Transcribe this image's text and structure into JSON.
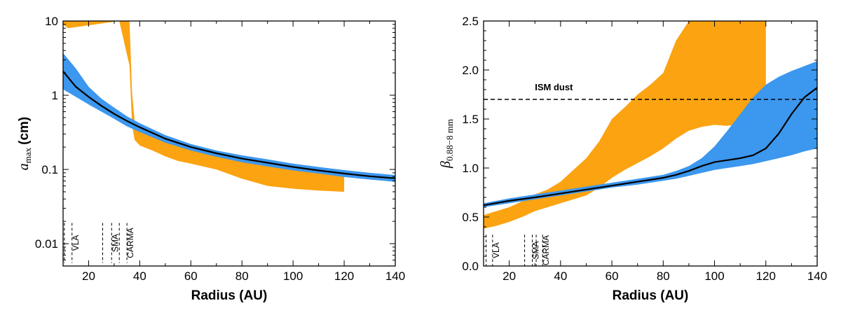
{
  "chart_data": [
    {
      "type": "area",
      "id": "left",
      "ylabel_main": "a",
      "ylabel_sub": "max",
      "ylabel_unit": "(cm)",
      "xlabel": "Radius (AU)",
      "xlim": [
        10,
        140
      ],
      "ylim": [
        0.005,
        10
      ],
      "yscale": "log",
      "xticks": [
        20,
        40,
        60,
        80,
        100,
        120,
        140
      ],
      "yticks": [
        0.01,
        0.1,
        1,
        10
      ],
      "ytick_labels": [
        "0.01",
        "0.1",
        "1",
        "10"
      ],
      "colors": {
        "blue": "#3c97ee",
        "orange": "#fba311",
        "line": "#000000"
      },
      "blue_band": {
        "x": [
          10,
          15,
          20,
          25,
          30,
          35,
          40,
          50,
          60,
          70,
          80,
          90,
          100,
          110,
          120,
          130,
          140
        ],
        "upper": [
          3.7,
          2.3,
          1.3,
          0.9,
          0.68,
          0.52,
          0.42,
          0.29,
          0.22,
          0.18,
          0.155,
          0.137,
          0.12,
          0.108,
          0.098,
          0.09,
          0.084
        ],
        "lower": [
          1.2,
          0.95,
          0.75,
          0.6,
          0.48,
          0.38,
          0.32,
          0.23,
          0.18,
          0.148,
          0.125,
          0.11,
          0.097,
          0.088,
          0.079,
          0.073,
          0.068
        ]
      },
      "orange_band": {
        "x": [
          10,
          12,
          32,
          34,
          36,
          37,
          38,
          40,
          45,
          50,
          55,
          60,
          70,
          80,
          90,
          100,
          110,
          120
        ],
        "upper": [
          10,
          10,
          10,
          10,
          10,
          1.1,
          0.45,
          0.37,
          0.31,
          0.26,
          0.22,
          0.2,
          0.17,
          0.14,
          0.13,
          0.115,
          0.1,
          0.095
        ],
        "lower": [
          9,
          8,
          10,
          5,
          2.5,
          0.4,
          0.25,
          0.21,
          0.18,
          0.15,
          0.13,
          0.12,
          0.1,
          0.075,
          0.06,
          0.055,
          0.052,
          0.05
        ]
      },
      "model_line": {
        "x": [
          10,
          15,
          20,
          25,
          30,
          35,
          40,
          50,
          60,
          70,
          80,
          90,
          100,
          110,
          120,
          130,
          140
        ],
        "y": [
          2.1,
          1.3,
          0.95,
          0.72,
          0.56,
          0.45,
          0.37,
          0.26,
          0.2,
          0.165,
          0.14,
          0.123,
          0.108,
          0.097,
          0.088,
          0.081,
          0.076
        ]
      },
      "beam_markers": [
        {
          "label": "VLA",
          "x0": 10.5,
          "x1": 13.5
        },
        {
          "label": "SMA",
          "x0": 25.5,
          "x1": 29
        },
        {
          "label": "CARMA",
          "x0": 32,
          "x1": 35
        }
      ],
      "beam_ylim": [
        0.0055,
        0.019
      ]
    },
    {
      "type": "area",
      "id": "right",
      "ylabel_main": "β",
      "ylabel_sub": "0.88−8 mm",
      "xlabel": "Radius (AU)",
      "xlim": [
        10,
        140
      ],
      "ylim": [
        0,
        2.5
      ],
      "yscale": "linear",
      "xticks": [
        20,
        40,
        60,
        80,
        100,
        120,
        140
      ],
      "yticks": [
        0,
        0.5,
        1.0,
        1.5,
        2.0,
        2.5
      ],
      "ytick_labels": [
        "0.0",
        "0.5",
        "1.0",
        "1.5",
        "2.0",
        "2.5"
      ],
      "colors": {
        "blue": "#3c97ee",
        "orange": "#fba311",
        "line": "#000000"
      },
      "blue_band": {
        "x": [
          10,
          20,
          30,
          40,
          50,
          60,
          70,
          80,
          85,
          90,
          95,
          100,
          105,
          110,
          115,
          120,
          125,
          130,
          135,
          140
        ],
        "upper": [
          0.64,
          0.69,
          0.73,
          0.77,
          0.81,
          0.85,
          0.89,
          0.93,
          0.97,
          1.02,
          1.1,
          1.22,
          1.38,
          1.55,
          1.72,
          1.85,
          1.93,
          1.99,
          2.04,
          2.09
        ],
        "lower": [
          0.6,
          0.64,
          0.68,
          0.72,
          0.76,
          0.8,
          0.83,
          0.87,
          0.89,
          0.92,
          0.95,
          0.98,
          1.0,
          1.02,
          1.04,
          1.07,
          1.1,
          1.13,
          1.17,
          1.2
        ]
      },
      "orange_band": {
        "x": [
          10,
          15,
          20,
          25,
          30,
          35,
          40,
          45,
          50,
          55,
          60,
          65,
          70,
          75,
          80,
          85,
          90,
          95,
          100,
          105,
          110,
          115,
          120
        ],
        "upper": [
          0.52,
          0.56,
          0.6,
          0.66,
          0.73,
          0.78,
          0.86,
          0.98,
          1.1,
          1.27,
          1.5,
          1.62,
          1.75,
          1.85,
          1.97,
          2.3,
          2.5,
          2.5,
          2.5,
          2.5,
          2.5,
          2.5,
          2.5
        ],
        "lower": [
          0.38,
          0.41,
          0.45,
          0.5,
          0.56,
          0.6,
          0.64,
          0.68,
          0.72,
          0.8,
          0.9,
          0.98,
          1.05,
          1.12,
          1.2,
          1.3,
          1.38,
          1.42,
          1.44,
          1.43,
          1.45,
          1.55,
          1.7
        ]
      },
      "model_line": {
        "x": [
          10,
          20,
          30,
          40,
          50,
          60,
          70,
          80,
          85,
          90,
          95,
          100,
          105,
          110,
          115,
          120,
          125,
          130,
          135,
          140
        ],
        "y": [
          0.62,
          0.665,
          0.7,
          0.74,
          0.78,
          0.82,
          0.86,
          0.9,
          0.93,
          0.97,
          1.02,
          1.06,
          1.08,
          1.1,
          1.13,
          1.2,
          1.35,
          1.55,
          1.72,
          1.82
        ]
      },
      "reference_line": {
        "y": 1.7,
        "label": "ISM dust",
        "label_x": 30,
        "label_y": 1.82
      },
      "beam_markers": [
        {
          "label": "VLA",
          "x0": 11,
          "x1": 13.5
        },
        {
          "label": "SMA",
          "x0": 26,
          "x1": 29
        },
        {
          "label": "CARMA",
          "x0": 30.5,
          "x1": 33
        }
      ],
      "beam_ylim": [
        0.0,
        0.32
      ]
    }
  ]
}
